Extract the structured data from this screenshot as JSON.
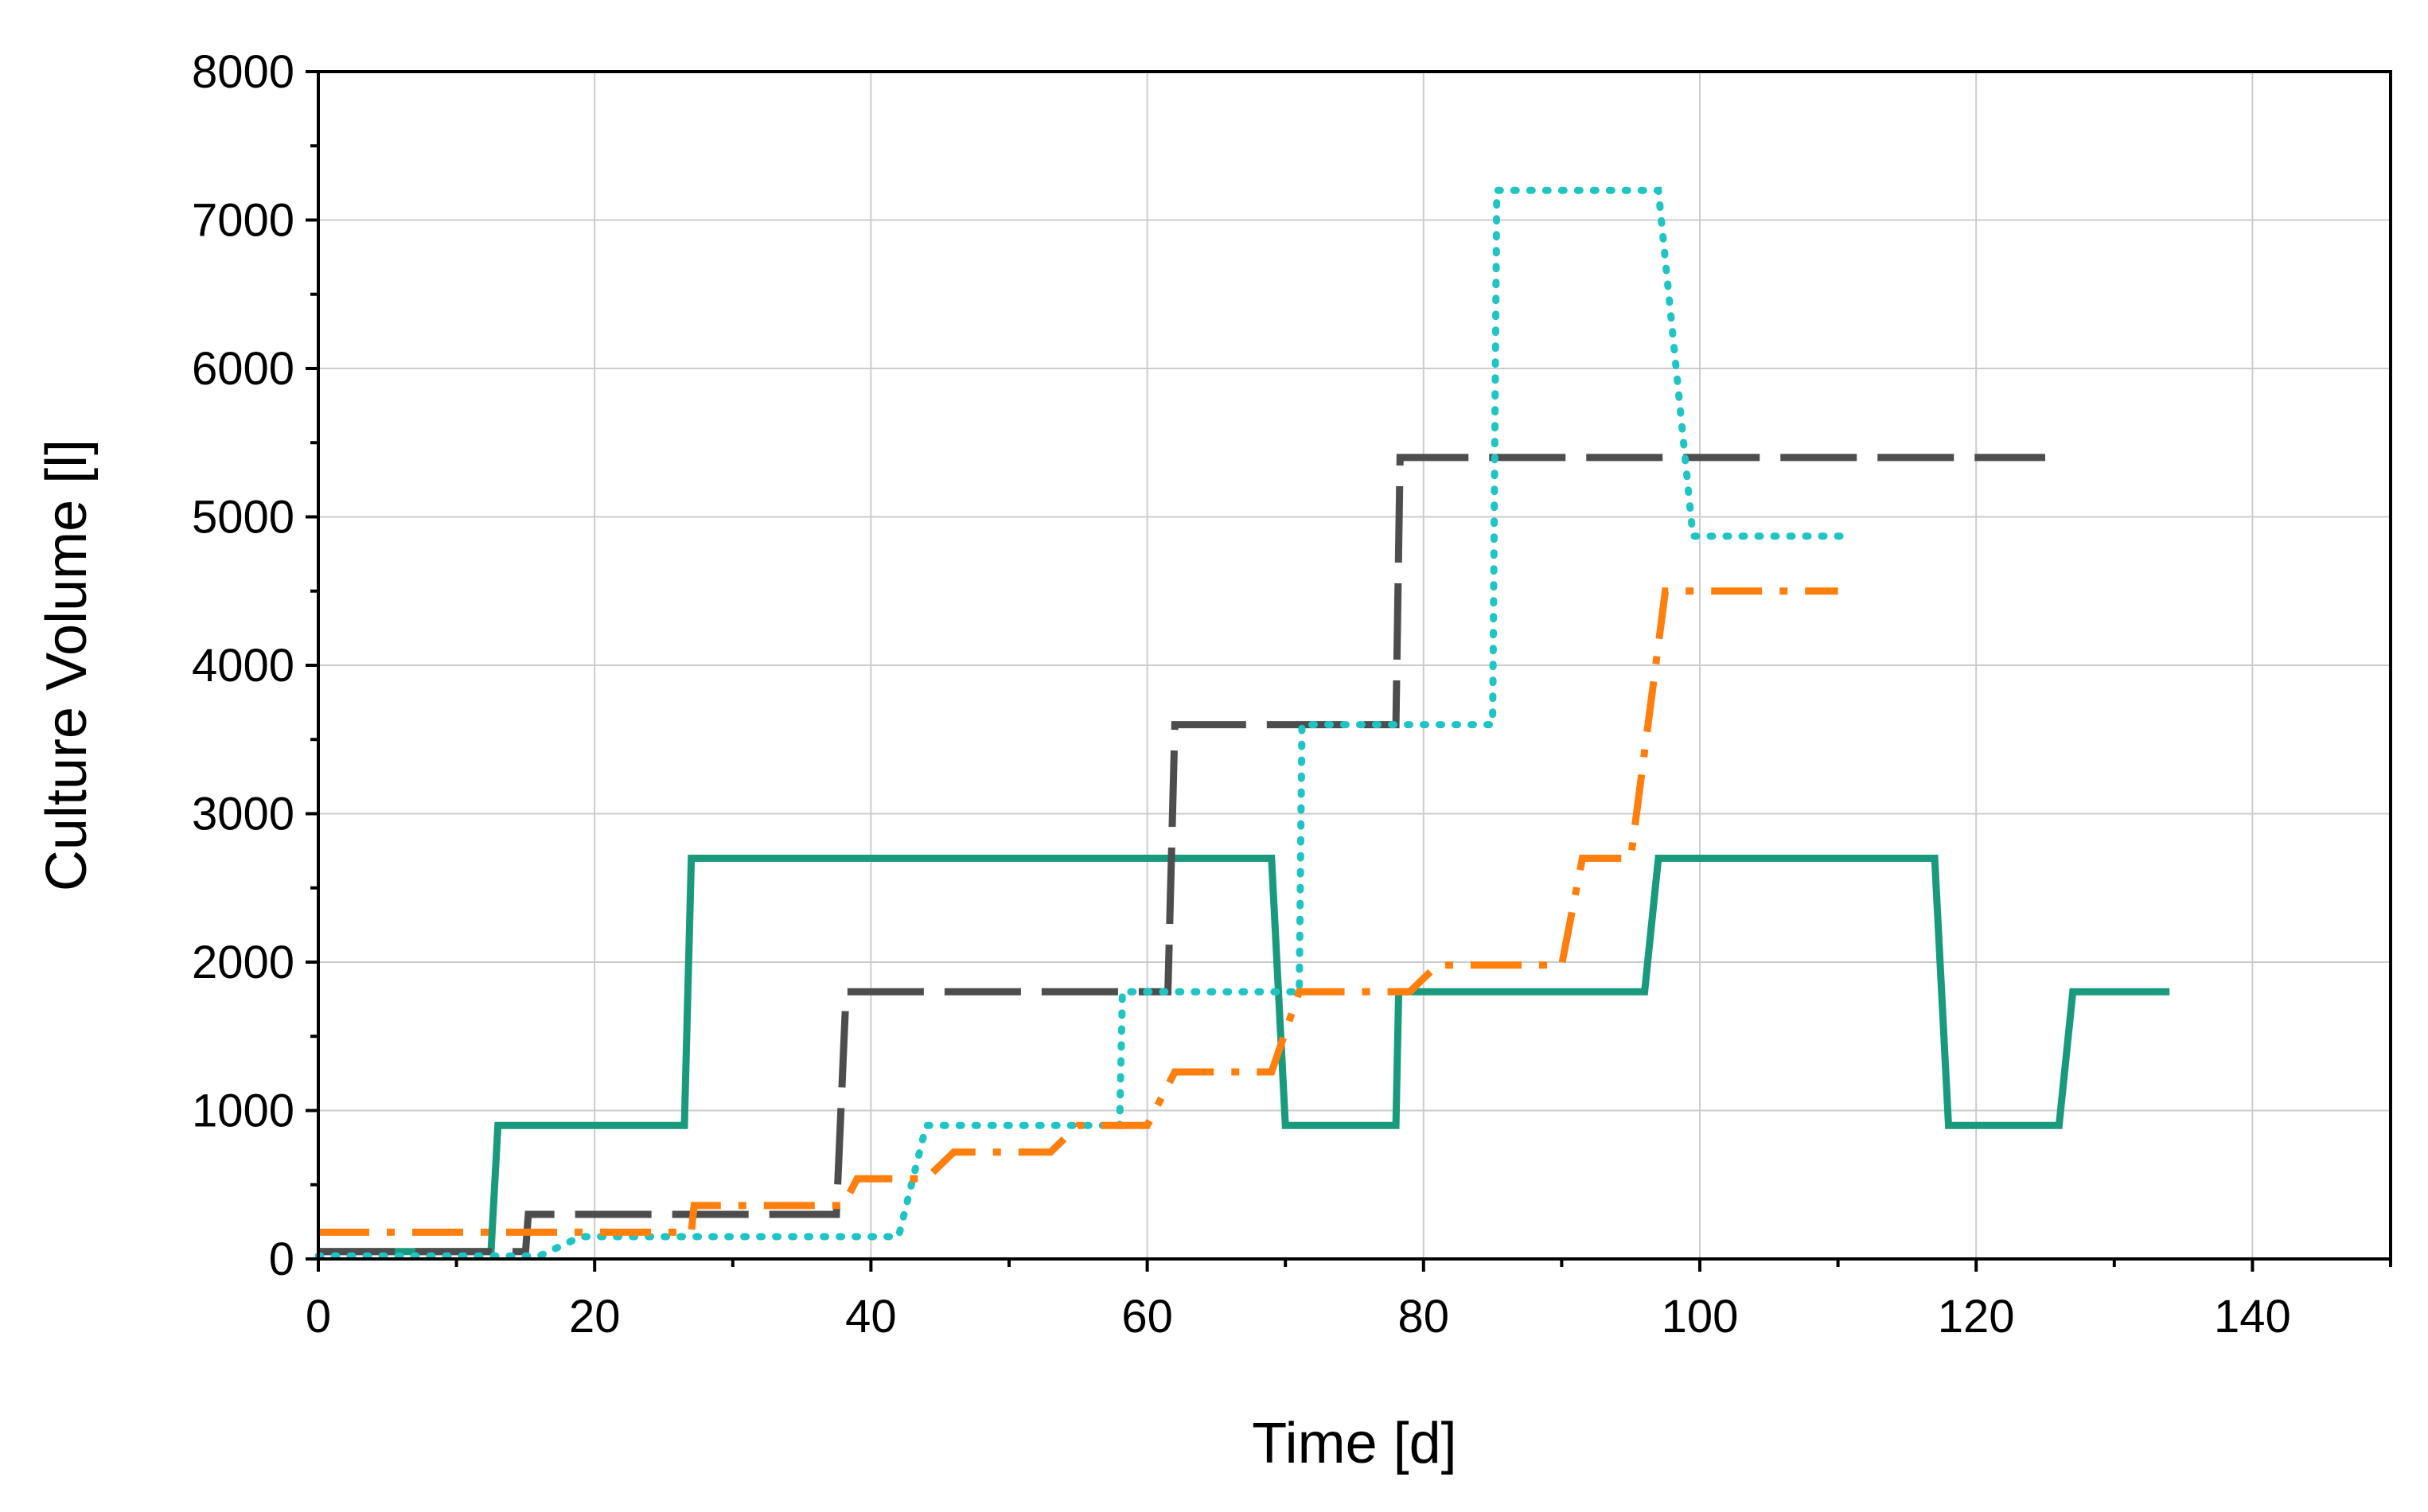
{
  "chart_data": {
    "type": "line",
    "title": "",
    "xlabel": "Time [d]",
    "ylabel": "Culture Volume [l]",
    "xlim": [
      0,
      150
    ],
    "ylim": [
      0,
      8000
    ],
    "xticks": [
      0,
      20,
      40,
      60,
      80,
      100,
      120,
      140
    ],
    "yticks": [
      0,
      1000,
      2000,
      3000,
      4000,
      5000,
      6000,
      7000,
      8000
    ],
    "grid": true,
    "legend": "none",
    "series": [
      {
        "style": "solid",
        "color": "#1a9a7c",
        "x": [
          0,
          12.5,
          13,
          26.5,
          27,
          69,
          70,
          78,
          78.2,
          96,
          97,
          117,
          118,
          126,
          127,
          134
        ],
        "y": [
          50,
          50,
          900,
          900,
          2700,
          2700,
          900,
          900,
          1800,
          1800,
          2700,
          2700,
          900,
          900,
          1800,
          1800
        ]
      },
      {
        "style": "dashed",
        "color": "#4d4d4d",
        "x": [
          0,
          15,
          15.2,
          37.5,
          38.2,
          61.5,
          62,
          78,
          78.3,
          125
        ],
        "y": [
          50,
          50,
          300,
          300,
          1800,
          1800,
          3600,
          3600,
          5400,
          5400
        ]
      },
      {
        "style": "dotted",
        "color": "#1fc4c4",
        "x": [
          0,
          16,
          19,
          42,
          44,
          58,
          58.2,
          71,
          71.2,
          85,
          85.3,
          97,
          99.5,
          111
        ],
        "y": [
          20,
          20,
          150,
          150,
          900,
          900,
          1800,
          1800,
          3600,
          3600,
          7200,
          7200,
          4870,
          4870
        ]
      },
      {
        "style": "dash-dot",
        "color": "#ff7f0e",
        "x": [
          0,
          27,
          27.2,
          38,
          39,
          44,
          46,
          53,
          55,
          60,
          62,
          69,
          71,
          79,
          81,
          90,
          91.5,
          95,
          97.5,
          98.5,
          110
        ],
        "y": [
          180,
          180,
          360,
          360,
          540,
          540,
          720,
          720,
          900,
          900,
          1260,
          1260,
          1800,
          1800,
          1980,
          1980,
          2700,
          2700,
          4500,
          4500,
          4500
        ]
      }
    ]
  }
}
